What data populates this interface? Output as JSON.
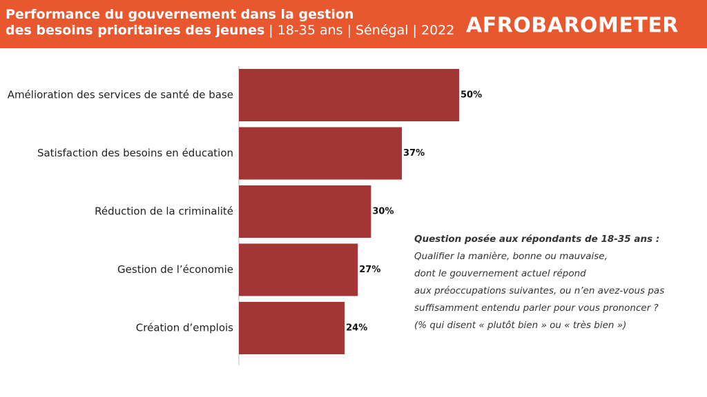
{
  "chart_data": {
    "type": "hbar",
    "title": "Performance du gouvernement dans la gestion des besoins prioritaires des jeunes",
    "subtitle": "| 18-35 ans | Sénégal | 2022",
    "logo": "AFROBAROMETER",
    "categories": [
      "Amélioration des services de santé de base",
      "Satisfaction des besoins en éducation",
      "Réduction de la criminalité",
      "Gestion de l’économie",
      "Création d’emplois"
    ],
    "values": [
      50,
      37,
      30,
      27,
      24
    ],
    "value_labels": [
      "50%",
      "37%",
      "30%",
      "27%",
      "24%"
    ],
    "color": "#a33535",
    "annotation": {
      "heading": "Question posée aux répondants de 18-35 ans :",
      "lines": [
        "Qualifier la manière, bonne ou mauvaise,",
        "dont le gouvernement actuel répond",
        "aux préoccupations suivantes, ou n’en avez-vous pas",
        "suffisamment entendu parler pour vous prononcer ?",
        "(% qui disent « plutôt bien » ou « très bien »)"
      ]
    }
  }
}
